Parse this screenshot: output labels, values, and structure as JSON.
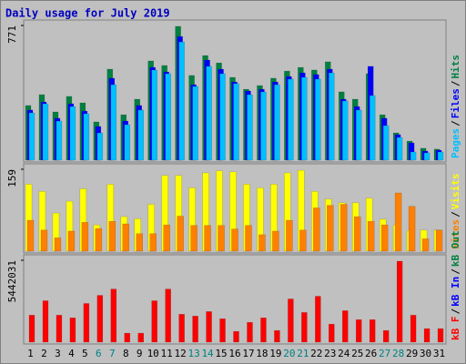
{
  "chart_data": {
    "type": "bar",
    "title": "Daily usage for July 2019",
    "categories": [
      "1",
      "2",
      "3",
      "4",
      "5",
      "6",
      "7",
      "8",
      "9",
      "10",
      "11",
      "12",
      "13",
      "14",
      "15",
      "16",
      "17",
      "18",
      "19",
      "20",
      "21",
      "22",
      "23",
      "24",
      "25",
      "26",
      "27",
      "28",
      "29",
      "30",
      "31"
    ],
    "category_colors": [
      "#000000",
      "#000000",
      "#000000",
      "#000000",
      "#000000",
      "#008080",
      "#008080",
      "#000000",
      "#000000",
      "#000000",
      "#000000",
      "#000000",
      "#008080",
      "#008080",
      "#000000",
      "#000000",
      "#000000",
      "#000000",
      "#000000",
      "#008080",
      "#008080",
      "#000000",
      "#000000",
      "#000000",
      "#000000",
      "#000000",
      "#008080",
      "#008080",
      "#000000",
      "#000000",
      "#000000"
    ],
    "legend_separator": "/",
    "panels": [
      {
        "ylim": [
          0,
          771
        ],
        "yticks": [
          771
        ],
        "series": [
          {
            "name": "Hits",
            "color": "#008040",
            "values": [
              313,
              375,
              276,
              365,
              328,
              219,
              521,
              260,
              349,
              568,
              542,
              766,
              485,
              599,
              557,
              474,
              406,
              427,
              469,
              510,
              531,
              516,
              563,
              391,
              349,
              495,
              260,
              156,
              109,
              68,
              63
            ]
          },
          {
            "name": "Files",
            "color": "#0000ff",
            "values": [
              287,
              333,
              240,
              323,
              281,
              193,
              469,
              224,
              313,
              531,
              505,
              708,
              432,
              573,
              521,
              448,
              396,
              406,
              448,
              479,
              500,
              490,
              521,
              349,
              307,
              537,
              240,
              146,
              99,
              52,
              57
            ]
          },
          {
            "name": "Pages",
            "color": "#00c0ff",
            "values": [
              271,
              323,
              224,
              307,
              266,
              156,
              432,
              203,
              287,
              516,
              495,
              677,
              422,
              537,
              495,
              438,
              375,
              391,
              432,
              464,
              474,
              464,
              500,
              339,
              287,
              370,
              198,
              130,
              47,
              42,
              47
            ]
          }
        ]
      },
      {
        "ylim": [
          0,
          159
        ],
        "yticks": [
          159
        ],
        "series": [
          {
            "name": "Visits",
            "color": "#ffff00",
            "values": [
              130,
              116,
              74,
              97,
              121,
              51,
              130,
              67,
              63,
              91,
              147,
              147,
              123,
              152,
              156,
              154,
              130,
              123,
              130,
              152,
              157,
              116,
              101,
              94,
              94,
              103,
              62,
              51,
              40,
              41,
              41
            ]
          },
          {
            "name": "Sites",
            "color": "#ff8000",
            "values": [
              60,
              41,
              26,
              39,
              56,
              44,
              58,
              53,
              34,
              34,
              51,
              68,
              50,
              50,
              50,
              43,
              50,
              32,
              39,
              60,
              41,
              84,
              89,
              91,
              67,
              58,
              51,
              113,
              87,
              24,
              41
            ]
          }
        ]
      },
      {
        "ylim": [
          0,
          5442031
        ],
        "yticks": [
          5442031
        ],
        "series": [
          {
            "name": "kB Out",
            "color": "#008040",
            "values": [
              0,
              0,
              0,
              0,
              0,
              0,
              0,
              0,
              0,
              0,
              0,
              0,
              0,
              0,
              0,
              0,
              0,
              0,
              0,
              0,
              0,
              0,
              0,
              0,
              0,
              0,
              0,
              0,
              0,
              0,
              0
            ]
          },
          {
            "name": "kB In",
            "color": "#0000ff",
            "values": [
              0,
              0,
              0,
              0,
              0,
              0,
              0,
              0,
              0,
              0,
              0,
              0,
              0,
              0,
              0,
              0,
              0,
              0,
              0,
              0,
              0,
              0,
              0,
              0,
              0,
              0,
              0,
              0,
              0,
              0,
              0
            ]
          },
          {
            "name": "kB F",
            "color": "#ff0000",
            "values": [
              1794000,
              2751000,
              1794000,
              1615000,
              2571000,
              3110000,
              3528000,
              598000,
              598000,
              2751000,
              3528000,
              1854000,
              1734000,
              2033000,
              1555000,
              718000,
              1316000,
              1615000,
              777000,
              2870000,
              1973000,
              3050000,
              1196000,
              2093000,
              1495000,
              1495000,
              777000,
              5382000,
              1794000,
              897000,
              897000
            ]
          }
        ]
      }
    ]
  }
}
